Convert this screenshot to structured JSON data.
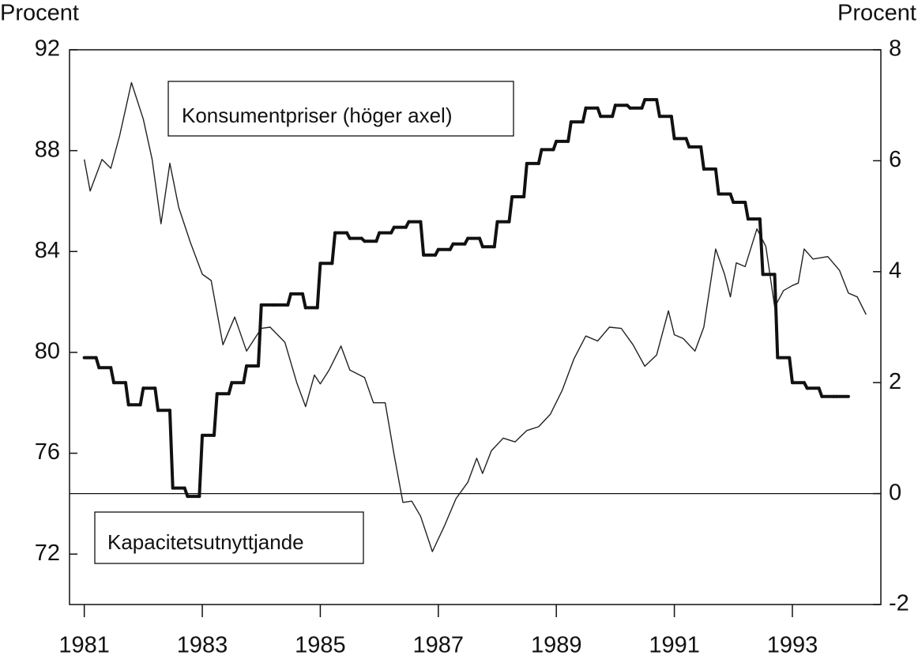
{
  "chart_data": {
    "type": "line",
    "ylabel": "Procent",
    "y2label": "Procent",
    "xlim": [
      1980.75,
      1994.5
    ],
    "xticks": [
      1981,
      1983,
      1985,
      1987,
      1989,
      1991,
      1993
    ],
    "ylim": [
      70,
      92
    ],
    "yticks": [
      72,
      76,
      80,
      84,
      88,
      92
    ],
    "y2lim": [
      -2,
      8
    ],
    "y2ticks": [
      -2,
      0,
      2,
      4,
      6,
      8
    ],
    "reference_line": {
      "axis": "y2",
      "value": 0
    },
    "series": [
      {
        "name": "Kapacitetsutnyttjande",
        "color": "#222",
        "width": 1.4,
        "axis": "y",
        "x": [
          1981.0,
          1981.1,
          1981.3,
          1981.45,
          1981.6,
          1981.8,
          1982.0,
          1982.15,
          1982.3,
          1982.45,
          1982.6,
          1982.8,
          1983.0,
          1983.15,
          1983.35,
          1983.55,
          1983.75,
          1984.0,
          1984.15,
          1984.4,
          1984.6,
          1984.75,
          1984.9,
          1985.0,
          1985.15,
          1985.35,
          1985.5,
          1985.75,
          1985.9,
          1986.1,
          1986.25,
          1986.4,
          1986.55,
          1986.7,
          1986.9,
          1987.1,
          1987.3,
          1987.5,
          1987.65,
          1987.75,
          1987.9,
          1988.1,
          1988.3,
          1988.5,
          1988.7,
          1988.9,
          1989.1,
          1989.3,
          1989.5,
          1989.7,
          1989.9,
          1990.1,
          1990.3,
          1990.5,
          1990.7,
          1990.9,
          1991.0,
          1991.15,
          1991.35,
          1991.5,
          1991.7,
          1991.85,
          1991.95,
          1992.05,
          1992.2,
          1992.4,
          1992.55,
          1992.7,
          1992.85,
          1993.0,
          1993.1,
          1993.2,
          1993.35,
          1993.6,
          1993.8,
          1993.95,
          1994.1,
          1994.25
        ],
        "values": [
          87.65,
          86.4,
          87.65,
          87.3,
          88.6,
          90.7,
          89.25,
          87.65,
          85.1,
          87.5,
          85.75,
          84.35,
          83.1,
          82.85,
          80.3,
          81.4,
          80.05,
          80.95,
          81.0,
          80.4,
          78.8,
          77.85,
          79.1,
          78.75,
          79.3,
          80.25,
          79.3,
          79.0,
          78.0,
          78.0,
          75.95,
          74.05,
          74.1,
          73.5,
          72.1,
          73.1,
          74.2,
          74.85,
          75.8,
          75.2,
          76.1,
          76.6,
          76.45,
          76.9,
          77.05,
          77.55,
          78.5,
          79.75,
          80.65,
          80.45,
          81.0,
          80.95,
          80.3,
          79.45,
          79.9,
          81.65,
          80.7,
          80.55,
          80.05,
          81.0,
          84.1,
          83.1,
          82.2,
          83.55,
          83.4,
          84.9,
          84.2,
          81.8,
          82.45,
          82.65,
          82.75,
          84.1,
          83.7,
          83.8,
          83.25,
          82.35,
          82.2,
          81.5
        ]
      },
      {
        "name": "Konsumentpriser (höger axel)",
        "color": "#111",
        "width": 4,
        "axis": "y2",
        "step": true,
        "x": [
          1981.0,
          1981.25,
          1981.5,
          1981.75,
          1982.0,
          1982.25,
          1982.5,
          1982.75,
          1983.0,
          1983.25,
          1983.5,
          1983.75,
          1984.0,
          1984.25,
          1984.5,
          1984.75,
          1985.0,
          1985.25,
          1985.5,
          1985.75,
          1986.0,
          1986.25,
          1986.5,
          1986.75,
          1987.0,
          1987.25,
          1987.5,
          1987.75,
          1988.0,
          1988.25,
          1988.5,
          1988.75,
          1989.0,
          1989.25,
          1989.5,
          1989.75,
          1990.0,
          1990.25,
          1990.5,
          1990.75,
          1991.0,
          1991.25,
          1991.5,
          1991.75,
          1992.0,
          1992.25,
          1992.5,
          1992.75,
          1993.0,
          1993.25,
          1993.5,
          1993.75
        ],
        "values": [
          2.45,
          2.27,
          2.0,
          1.6,
          1.9,
          1.5,
          0.1,
          -0.05,
          1.05,
          1.8,
          2.0,
          2.3,
          3.4,
          3.4,
          3.6,
          3.35,
          4.15,
          4.7,
          4.6,
          4.55,
          4.7,
          4.8,
          4.9,
          4.3,
          4.4,
          4.5,
          4.6,
          4.45,
          4.9,
          5.35,
          5.95,
          6.2,
          6.35,
          6.7,
          6.95,
          6.8,
          7.0,
          6.95,
          7.1,
          6.8,
          6.4,
          6.25,
          5.85,
          5.4,
          5.25,
          4.95,
          3.95,
          2.45,
          2.0,
          1.9,
          1.75,
          1.75
        ]
      }
    ]
  }
}
